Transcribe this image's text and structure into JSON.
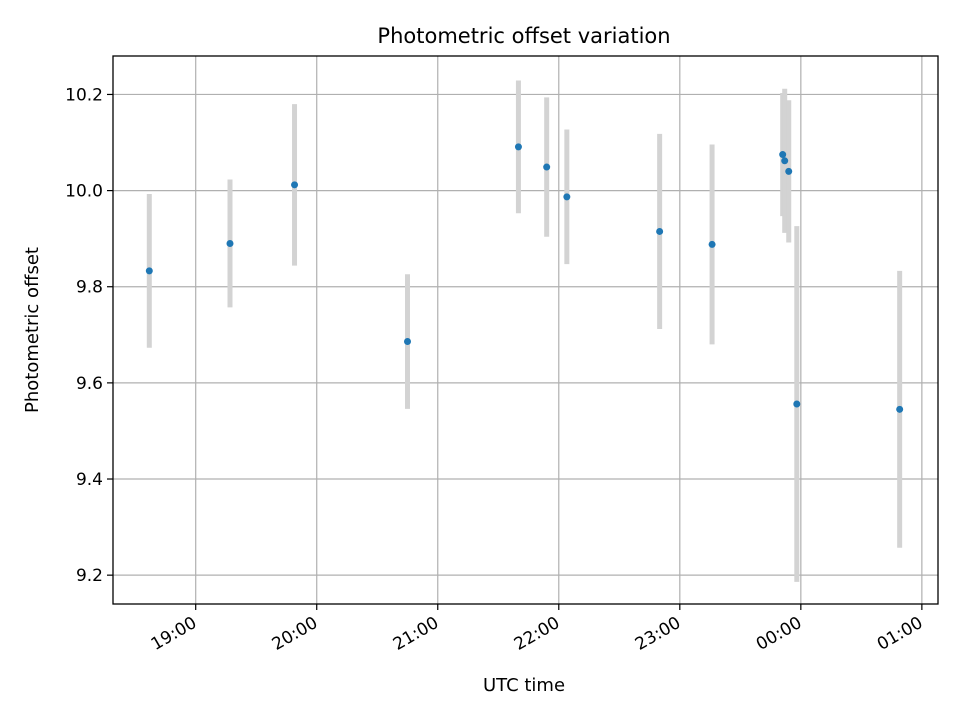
{
  "chart_data": {
    "type": "scatter",
    "title": "Photometric offset variation",
    "xlabel": "UTC time",
    "ylabel": "Photometric offset",
    "x_ticks": [
      "19:00",
      "20:00",
      "21:00",
      "22:00",
      "23:00",
      "00:00",
      "01:00"
    ],
    "y_ticks": [
      "9.2",
      "9.4",
      "9.6",
      "9.8",
      "10.0",
      "10.2"
    ],
    "ylim": [
      9.14,
      10.28
    ],
    "xlim": [
      "18:19",
      "01:08"
    ],
    "grid": true,
    "marker_color": "#1f77b4",
    "errorbar_color": "#d3d3d3",
    "points": [
      {
        "time": "18:37",
        "y": 9.833,
        "err": 0.16
      },
      {
        "time": "19:17",
        "y": 9.89,
        "err": 0.133
      },
      {
        "time": "19:49",
        "y": 10.012,
        "err": 0.168
      },
      {
        "time": "20:45",
        "y": 9.686,
        "err": 0.14
      },
      {
        "time": "21:40",
        "y": 10.091,
        "err": 0.138
      },
      {
        "time": "21:54",
        "y": 10.049,
        "err": 0.145
      },
      {
        "time": "22:04",
        "y": 9.987,
        "err": 0.14
      },
      {
        "time": "22:50",
        "y": 9.915,
        "err": 0.203
      },
      {
        "time": "23:16",
        "y": 9.888,
        "err": 0.208
      },
      {
        "time": "23:51",
        "y": 10.075,
        "err": 0.128
      },
      {
        "time": "23:52",
        "y": 10.062,
        "err": 0.15
      },
      {
        "time": "23:54",
        "y": 10.04,
        "err": 0.148
      },
      {
        "time": "23:58",
        "y": 9.556,
        "err": 0.37
      },
      {
        "time": "00:49",
        "y": 9.545,
        "err": 0.288
      }
    ]
  }
}
